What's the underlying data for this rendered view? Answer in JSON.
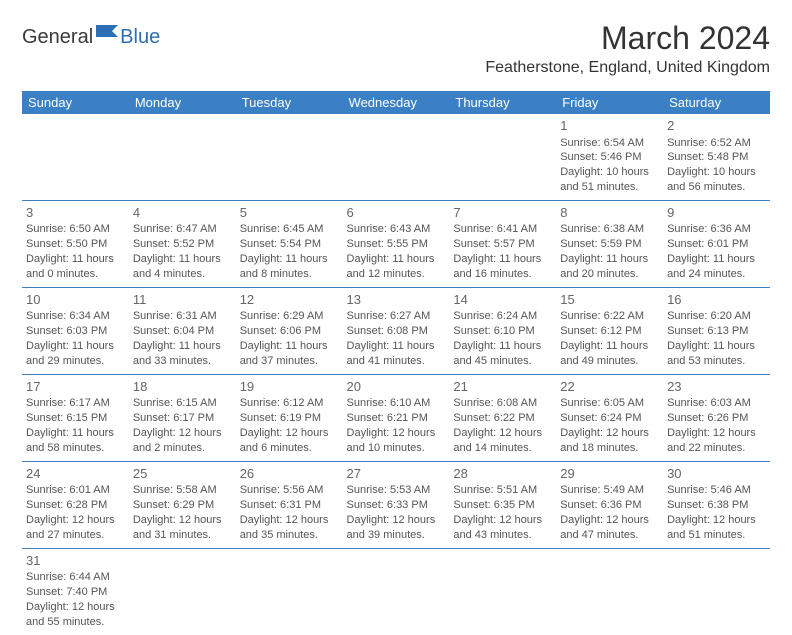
{
  "logo": {
    "textDark": "General",
    "textBlue": "Blue"
  },
  "title": "March 2024",
  "location": "Featherstone, England, United Kingdom",
  "colors": {
    "headerBg": "#3b80c4",
    "headerText": "#ffffff",
    "border": "#3b80c4",
    "logoBlue": "#2d6fb5"
  },
  "dayHeaders": [
    "Sunday",
    "Monday",
    "Tuesday",
    "Wednesday",
    "Thursday",
    "Friday",
    "Saturday"
  ],
  "weeks": [
    [
      null,
      null,
      null,
      null,
      null,
      {
        "n": "1",
        "sr": "Sunrise: 6:54 AM",
        "ss": "Sunset: 5:46 PM",
        "dl": "Daylight: 10 hours and 51 minutes."
      },
      {
        "n": "2",
        "sr": "Sunrise: 6:52 AM",
        "ss": "Sunset: 5:48 PM",
        "dl": "Daylight: 10 hours and 56 minutes."
      }
    ],
    [
      {
        "n": "3",
        "sr": "Sunrise: 6:50 AM",
        "ss": "Sunset: 5:50 PM",
        "dl": "Daylight: 11 hours and 0 minutes."
      },
      {
        "n": "4",
        "sr": "Sunrise: 6:47 AM",
        "ss": "Sunset: 5:52 PM",
        "dl": "Daylight: 11 hours and 4 minutes."
      },
      {
        "n": "5",
        "sr": "Sunrise: 6:45 AM",
        "ss": "Sunset: 5:54 PM",
        "dl": "Daylight: 11 hours and 8 minutes."
      },
      {
        "n": "6",
        "sr": "Sunrise: 6:43 AM",
        "ss": "Sunset: 5:55 PM",
        "dl": "Daylight: 11 hours and 12 minutes."
      },
      {
        "n": "7",
        "sr": "Sunrise: 6:41 AM",
        "ss": "Sunset: 5:57 PM",
        "dl": "Daylight: 11 hours and 16 minutes."
      },
      {
        "n": "8",
        "sr": "Sunrise: 6:38 AM",
        "ss": "Sunset: 5:59 PM",
        "dl": "Daylight: 11 hours and 20 minutes."
      },
      {
        "n": "9",
        "sr": "Sunrise: 6:36 AM",
        "ss": "Sunset: 6:01 PM",
        "dl": "Daylight: 11 hours and 24 minutes."
      }
    ],
    [
      {
        "n": "10",
        "sr": "Sunrise: 6:34 AM",
        "ss": "Sunset: 6:03 PM",
        "dl": "Daylight: 11 hours and 29 minutes."
      },
      {
        "n": "11",
        "sr": "Sunrise: 6:31 AM",
        "ss": "Sunset: 6:04 PM",
        "dl": "Daylight: 11 hours and 33 minutes."
      },
      {
        "n": "12",
        "sr": "Sunrise: 6:29 AM",
        "ss": "Sunset: 6:06 PM",
        "dl": "Daylight: 11 hours and 37 minutes."
      },
      {
        "n": "13",
        "sr": "Sunrise: 6:27 AM",
        "ss": "Sunset: 6:08 PM",
        "dl": "Daylight: 11 hours and 41 minutes."
      },
      {
        "n": "14",
        "sr": "Sunrise: 6:24 AM",
        "ss": "Sunset: 6:10 PM",
        "dl": "Daylight: 11 hours and 45 minutes."
      },
      {
        "n": "15",
        "sr": "Sunrise: 6:22 AM",
        "ss": "Sunset: 6:12 PM",
        "dl": "Daylight: 11 hours and 49 minutes."
      },
      {
        "n": "16",
        "sr": "Sunrise: 6:20 AM",
        "ss": "Sunset: 6:13 PM",
        "dl": "Daylight: 11 hours and 53 minutes."
      }
    ],
    [
      {
        "n": "17",
        "sr": "Sunrise: 6:17 AM",
        "ss": "Sunset: 6:15 PM",
        "dl": "Daylight: 11 hours and 58 minutes."
      },
      {
        "n": "18",
        "sr": "Sunrise: 6:15 AM",
        "ss": "Sunset: 6:17 PM",
        "dl": "Daylight: 12 hours and 2 minutes."
      },
      {
        "n": "19",
        "sr": "Sunrise: 6:12 AM",
        "ss": "Sunset: 6:19 PM",
        "dl": "Daylight: 12 hours and 6 minutes."
      },
      {
        "n": "20",
        "sr": "Sunrise: 6:10 AM",
        "ss": "Sunset: 6:21 PM",
        "dl": "Daylight: 12 hours and 10 minutes."
      },
      {
        "n": "21",
        "sr": "Sunrise: 6:08 AM",
        "ss": "Sunset: 6:22 PM",
        "dl": "Daylight: 12 hours and 14 minutes."
      },
      {
        "n": "22",
        "sr": "Sunrise: 6:05 AM",
        "ss": "Sunset: 6:24 PM",
        "dl": "Daylight: 12 hours and 18 minutes."
      },
      {
        "n": "23",
        "sr": "Sunrise: 6:03 AM",
        "ss": "Sunset: 6:26 PM",
        "dl": "Daylight: 12 hours and 22 minutes."
      }
    ],
    [
      {
        "n": "24",
        "sr": "Sunrise: 6:01 AM",
        "ss": "Sunset: 6:28 PM",
        "dl": "Daylight: 12 hours and 27 minutes."
      },
      {
        "n": "25",
        "sr": "Sunrise: 5:58 AM",
        "ss": "Sunset: 6:29 PM",
        "dl": "Daylight: 12 hours and 31 minutes."
      },
      {
        "n": "26",
        "sr": "Sunrise: 5:56 AM",
        "ss": "Sunset: 6:31 PM",
        "dl": "Daylight: 12 hours and 35 minutes."
      },
      {
        "n": "27",
        "sr": "Sunrise: 5:53 AM",
        "ss": "Sunset: 6:33 PM",
        "dl": "Daylight: 12 hours and 39 minutes."
      },
      {
        "n": "28",
        "sr": "Sunrise: 5:51 AM",
        "ss": "Sunset: 6:35 PM",
        "dl": "Daylight: 12 hours and 43 minutes."
      },
      {
        "n": "29",
        "sr": "Sunrise: 5:49 AM",
        "ss": "Sunset: 6:36 PM",
        "dl": "Daylight: 12 hours and 47 minutes."
      },
      {
        "n": "30",
        "sr": "Sunrise: 5:46 AM",
        "ss": "Sunset: 6:38 PM",
        "dl": "Daylight: 12 hours and 51 minutes."
      }
    ],
    [
      {
        "n": "31",
        "sr": "Sunrise: 6:44 AM",
        "ss": "Sunset: 7:40 PM",
        "dl": "Daylight: 12 hours and 55 minutes."
      },
      null,
      null,
      null,
      null,
      null,
      null
    ]
  ]
}
